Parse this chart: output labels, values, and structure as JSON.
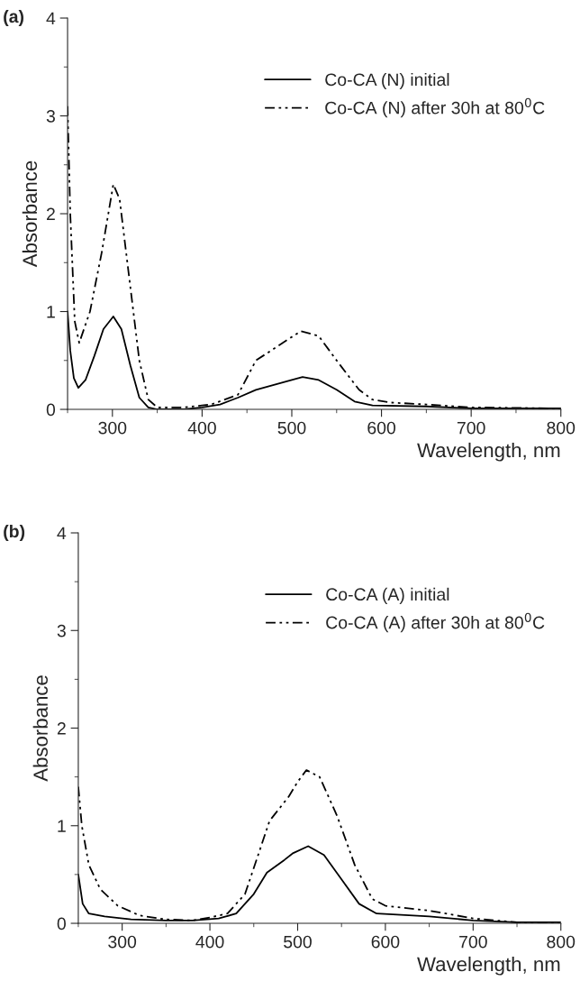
{
  "chart_data": [
    {
      "type": "line",
      "title": "(a)",
      "xlabel": "Wavelength, nm",
      "ylabel": "Absorbance",
      "xlim": [
        250,
        800
      ],
      "ylim": [
        0,
        4
      ],
      "xticks": [
        {
          "value": 250,
          "label": null
        },
        300,
        {
          "value": 350,
          "label": null
        },
        400,
        {
          "value": 450,
          "label": null
        },
        500,
        {
          "value": 550,
          "label": null
        },
        600,
        {
          "value": 650,
          "label": null
        },
        700,
        {
          "value": 750,
          "label": null
        },
        800
      ],
      "yticks": [
        0,
        {
          "value": 0.5,
          "label": null
        },
        1,
        {
          "value": 1.5,
          "label": null
        },
        2,
        {
          "value": 2.5,
          "label": null
        },
        3,
        {
          "value": 3.5,
          "label": null
        },
        4
      ],
      "grid": false,
      "legend": "top right",
      "marker": "none",
      "series": [
        {
          "name": "Co-CA (N) initial",
          "color": "#000000",
          "line_style": "solid",
          "x": [
            250,
            253,
            257,
            262,
            270,
            280,
            290,
            301,
            310,
            320,
            330,
            340,
            350,
            380,
            400,
            420,
            440,
            460,
            480,
            500,
            512,
            530,
            550,
            570,
            590,
            650,
            700,
            800
          ],
          "values": [
            1.0,
            0.6,
            0.32,
            0.22,
            0.3,
            0.55,
            0.82,
            0.95,
            0.82,
            0.45,
            0.12,
            0.02,
            0.0,
            0.0,
            0.02,
            0.05,
            0.12,
            0.2,
            0.25,
            0.3,
            0.33,
            0.3,
            0.2,
            0.08,
            0.04,
            0.03,
            0.01,
            0.01
          ]
        },
        {
          "name": "Co-CA (N) after 30h at 80$^{0}$C",
          "color": "#000000",
          "line_style": "dashed",
          "x": [
            250,
            253,
            258,
            263,
            275,
            288,
            301,
            308,
            318,
            330,
            340,
            350,
            380,
            410,
            440,
            460,
            480,
            510,
            530,
            550,
            575,
            590,
            610,
            650,
            700,
            800
          ],
          "values": [
            3.1,
            2.0,
            0.9,
            0.68,
            1.0,
            1.6,
            2.3,
            2.15,
            1.4,
            0.5,
            0.1,
            0.02,
            0.02,
            0.05,
            0.15,
            0.5,
            0.62,
            0.8,
            0.75,
            0.5,
            0.2,
            0.1,
            0.07,
            0.05,
            0.02,
            0.01
          ]
        }
      ]
    },
    {
      "type": "line",
      "title": "(b)",
      "xlabel": "Wavelength, nm",
      "ylabel": "Absorbance",
      "xlim": [
        250,
        800
      ],
      "ylim": [
        0,
        4
      ],
      "xticks": [
        {
          "value": 250,
          "label": null
        },
        300,
        {
          "value": 350,
          "label": null
        },
        400,
        {
          "value": 450,
          "label": null
        },
        500,
        {
          "value": 550,
          "label": null
        },
        600,
        {
          "value": 650,
          "label": null
        },
        700,
        {
          "value": 750,
          "label": null
        },
        800
      ],
      "yticks": [
        0,
        {
          "value": 0.5,
          "label": null
        },
        1,
        {
          "value": 1.5,
          "label": null
        },
        2,
        {
          "value": 2.5,
          "label": null
        },
        3,
        {
          "value": 3.5,
          "label": null
        },
        4
      ],
      "grid": false,
      "legend": "top right",
      "marker": "none",
      "series": [
        {
          "name": "Co-CA (A) initial",
          "color": "#000000",
          "line_style": "solid",
          "x": [
            250,
            255,
            262,
            280,
            310,
            350,
            380,
            410,
            430,
            450,
            465,
            485,
            495,
            512,
            530,
            550,
            570,
            590,
            650,
            700,
            750,
            800
          ],
          "values": [
            0.5,
            0.2,
            0.1,
            0.07,
            0.04,
            0.03,
            0.03,
            0.05,
            0.1,
            0.3,
            0.52,
            0.65,
            0.72,
            0.79,
            0.7,
            0.45,
            0.2,
            0.1,
            0.07,
            0.03,
            0.01,
            0.01
          ]
        },
        {
          "name": "Co-CA (A) after 30h at 80$^{0}$C",
          "color": "#000000",
          "line_style": "dashed",
          "x": [
            250,
            254,
            262,
            275,
            295,
            320,
            350,
            380,
            400,
            420,
            440,
            455,
            468,
            490,
            500,
            510,
            525,
            545,
            565,
            585,
            600,
            650,
            700,
            750,
            800
          ],
          "values": [
            1.4,
            1.0,
            0.6,
            0.35,
            0.18,
            0.08,
            0.04,
            0.03,
            0.06,
            0.1,
            0.3,
            0.7,
            1.05,
            1.3,
            1.45,
            1.57,
            1.5,
            1.1,
            0.6,
            0.25,
            0.18,
            0.13,
            0.05,
            0.01,
            0.01
          ]
        }
      ]
    }
  ]
}
